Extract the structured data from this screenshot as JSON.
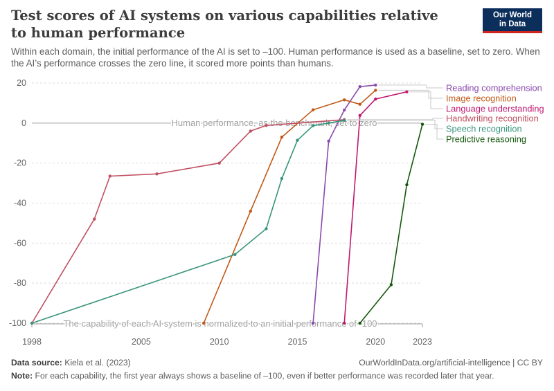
{
  "header": {
    "title": "Test scores of AI systems on various capabilities relative to human performance",
    "subtitle": "Within each domain, the initial performance of the AI is set to –100. Human performance is used as a baseline, set to zero. When the AI’s performance crosses the zero line, it scored more points than humans.",
    "logo_line1": "Our World",
    "logo_line2": "in Data"
  },
  "footer": {
    "source_label": "Data source:",
    "source_text": "Kiela et al. (2023)",
    "url_text": "OurWorldInData.org/artificial-intelligence | CC BY",
    "note_label": "Note:",
    "note_text": "For each capability, the first year always shows a baseline of –100, even if better performance was recorded later that year."
  },
  "chart_data": {
    "type": "line",
    "title": "Test scores of AI systems on various capabilities relative to human performance",
    "xlabel": "",
    "ylabel": "",
    "xlim": [
      1998,
      2023
    ],
    "ylim": [
      -100,
      20
    ],
    "x_ticks": [
      1998,
      2005,
      2010,
      2015,
      2020,
      2023
    ],
    "y_ticks": [
      20,
      0,
      -20,
      -40,
      -60,
      -80,
      -100
    ],
    "grid": "horizontal dashed",
    "legend": "right, labels at line ends",
    "annotations": {
      "zero_line": "Human performance, as the benchmark, set to zero",
      "baseline": "The capability of each AI system is normalized to an initial performance of -100"
    },
    "series": [
      {
        "name": "Reading comprehension",
        "color": "#8a49ad",
        "x": [
          2016,
          2017,
          2018,
          2019,
          2020
        ],
        "y": [
          -100,
          -9,
          6.5,
          18.2,
          19
        ]
      },
      {
        "name": "Image recognition",
        "color": "#c05917",
        "x": [
          2009,
          2012,
          2014,
          2016,
          2018,
          2019,
          2020
        ],
        "y": [
          -100,
          -44,
          -7,
          6.6,
          11.6,
          9.4,
          16.4
        ]
      },
      {
        "name": "Language understanding",
        "color": "#c0176f",
        "x": [
          2018,
          2019,
          2020,
          2022
        ],
        "y": [
          -100,
          3.8,
          12,
          15.6
        ]
      },
      {
        "name": "Handwriting recognition",
        "color": "#c05060",
        "x": [
          1998,
          2002,
          2003,
          2006,
          2010,
          2012,
          2013,
          2018
        ],
        "y": [
          -100,
          -48,
          -26.5,
          -25.4,
          -20,
          -4,
          -1.2,
          1.7
        ]
      },
      {
        "name": "Speech recognition",
        "color": "#38947c",
        "x": [
          1998,
          2011,
          2013,
          2014,
          2015,
          2016,
          2017,
          2018
        ],
        "y": [
          -100,
          -65.7,
          -52.8,
          -27.7,
          -8.6,
          -1.3,
          0,
          1.4
        ]
      },
      {
        "name": "Predictive reasoning",
        "color": "#13580b",
        "x": [
          2019,
          2021,
          2022,
          2023
        ],
        "y": [
          -100,
          -80.8,
          -30.8,
          -0.6
        ]
      }
    ]
  }
}
